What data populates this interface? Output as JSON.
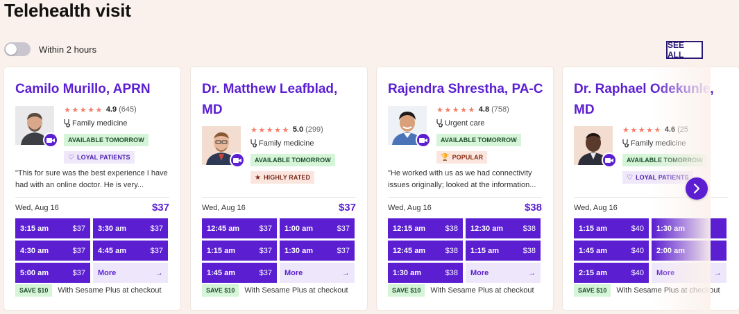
{
  "header": {
    "title": "Telehealth visit",
    "toggle_label": "Within 2 hours",
    "see_all": "SEE ALL"
  },
  "colors": {
    "accent": "#5b1fd1",
    "star": "#f47c68",
    "available_bg": "#d5f4d8"
  },
  "cards": [
    {
      "name": "Camilo Murillo, APRN",
      "stars": "★★★★★",
      "rating": "4.9",
      "reviews": "(645)",
      "specialty": "Family medicine",
      "tags": [
        {
          "type": "avail",
          "label": "AVAILABLE TOMORROW"
        },
        {
          "type": "loyal",
          "icon": "heart-icon",
          "label": "LOYAL PATIENTS"
        }
      ],
      "quote": "\"This for sure was the best experience I have had with an online doctor. He is very...",
      "date": "Wed, Aug 16",
      "price": "$37",
      "slots": [
        {
          "t": "3:15 am",
          "p": "$37"
        },
        {
          "t": "3:30 am",
          "p": "$37"
        },
        {
          "t": "4:30 am",
          "p": "$37"
        },
        {
          "t": "4:45 am",
          "p": "$37"
        },
        {
          "t": "5:00 am",
          "p": "$37"
        }
      ],
      "more": "More",
      "save_badge": "SAVE $10",
      "save_text": "With Sesame Plus at checkout"
    },
    {
      "name": "Dr. Matthew Leafblad, MD",
      "stars": "★★★★★",
      "rating": "5.0",
      "reviews": "(299)",
      "specialty": "Family medicine",
      "tags": [
        {
          "type": "avail",
          "label": "AVAILABLE TOMORROW"
        },
        {
          "type": "rated",
          "icon": "star-icon",
          "label": "HIGHLY RATED"
        }
      ],
      "quote": "",
      "date": "Wed, Aug 16",
      "price": "$37",
      "slots": [
        {
          "t": "12:45 am",
          "p": "$37"
        },
        {
          "t": "1:00 am",
          "p": "$37"
        },
        {
          "t": "1:15 am",
          "p": "$37"
        },
        {
          "t": "1:30 am",
          "p": "$37"
        },
        {
          "t": "1:45 am",
          "p": "$37"
        }
      ],
      "more": "More",
      "save_badge": "SAVE $10",
      "save_text": "With Sesame Plus at checkout"
    },
    {
      "name": "Rajendra Shrestha, PA-C",
      "stars": "★★★★★",
      "rating": "4.8",
      "reviews": "(758)",
      "specialty": "Urgent care",
      "tags": [
        {
          "type": "avail",
          "label": "AVAILABLE TOMORROW"
        },
        {
          "type": "popular",
          "icon": "trophy-icon",
          "label": "POPULAR"
        }
      ],
      "quote": "\"He worked with us as we had connectivity issues originally; looked at the information...",
      "date": "Wed, Aug 16",
      "price": "$38",
      "slots": [
        {
          "t": "12:15 am",
          "p": "$38"
        },
        {
          "t": "12:30 am",
          "p": "$38"
        },
        {
          "t": "12:45 am",
          "p": "$38"
        },
        {
          "t": "1:15 am",
          "p": "$38"
        },
        {
          "t": "1:30 am",
          "p": "$38"
        }
      ],
      "more": "More",
      "save_badge": "SAVE $10",
      "save_text": "With Sesame Plus at checkout"
    },
    {
      "name": "Dr. Raphael Odekunle, MD",
      "stars": "★★★★★",
      "rating": "4.6",
      "reviews": "(25",
      "specialty": "Family medicine",
      "tags": [
        {
          "type": "avail",
          "label": "AVAILABLE TOMORROW"
        },
        {
          "type": "loyal",
          "icon": "heart-icon",
          "label": "LOYAL PATIENTS"
        }
      ],
      "quote": "",
      "date": "Wed, Aug 16",
      "price": "",
      "slots": [
        {
          "t": "1:15 am",
          "p": "$40"
        },
        {
          "t": "1:30 am",
          "p": ""
        },
        {
          "t": "1:45 am",
          "p": "$40"
        },
        {
          "t": "2:00 am",
          "p": ""
        },
        {
          "t": "2:15 am",
          "p": "$40"
        }
      ],
      "more": "More",
      "save_badge": "SAVE $10",
      "save_text": "With Sesame Plus at checkout"
    }
  ]
}
